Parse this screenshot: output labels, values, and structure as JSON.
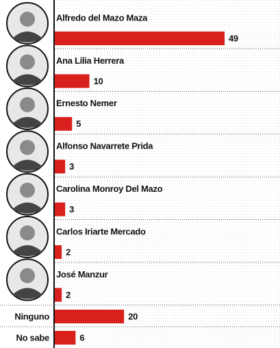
{
  "chart_data": {
    "type": "bar",
    "orientation": "horizontal",
    "categories": [
      "Alfredo del Mazo Maza",
      "Ana Lilia Herrera",
      "Ernesto Nemer",
      "Alfonso Navarrete Prida",
      "Carolina Monroy Del Mazo",
      "Carlos Iriarte Mercado",
      "José Manzur",
      "Ninguno",
      "No sabe"
    ],
    "values": [
      49,
      10,
      5,
      3,
      3,
      2,
      2,
      20,
      6
    ],
    "color": "#d9201c",
    "xlim": [
      0,
      65
    ]
  }
}
